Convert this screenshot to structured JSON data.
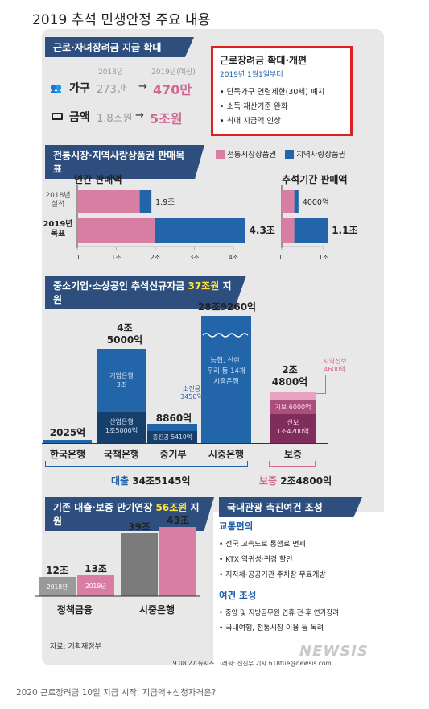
{
  "title": "2019 추석 민생안정 주요 내용",
  "s1": {
    "banner": "근로·자녀장려금 지급 확대",
    "year_prev": "2018년",
    "year_now": "2019년(예상)",
    "row1_label": "가구",
    "row1_prev": "273만",
    "row1_arrow": "→",
    "row1_now": "470만",
    "row2_label": "금액",
    "row2_prev": "1.8조원",
    "row2_arrow": "→",
    "row2_now": "5조원",
    "box_title": "근로장려금 확대·개편",
    "box_sub": "2019년 1월1일부터",
    "box_items": [
      "단독가구 연령제한(30세) 폐지",
      "소득·재산기준 완화",
      "최대 지급액 인상"
    ]
  },
  "s2": {
    "banner": "전통시장·지역사랑상품권 판매목표",
    "legend_pink": "전통시장상품권",
    "legend_blue": "지역사랑상품권",
    "left_title": "연간 판매액",
    "right_title": "추석기간 판매액",
    "row1_label_a": "2018년",
    "row1_label_b": "실적",
    "row2_label_a": "2019년",
    "row2_label_b": "목표",
    "left_val1": "1.9조",
    "left_val2": "4.3조",
    "right_val1": "4000억",
    "right_val2": "1.1조"
  },
  "s3": {
    "banner_pre": "중소기업·소상공인 추석신규자금 ",
    "banner_hl": "37조원",
    "banner_post": " 지원",
    "hanguk_val": "2025억",
    "gukchaek_top_a": "4조",
    "gukchaek_top_b": "5000억",
    "gukchaek_upper_a": "기업은행",
    "gukchaek_upper_b": "3조",
    "gukchaek_lower_a": "산업은행",
    "gukchaek_lower_b": "1조5000억",
    "jung_val": "8860억",
    "jung_annot_a": "소진공",
    "jung_annot_b": "3450억",
    "jung_inner": "중진공 5410억",
    "sijung_top": "28조9260억",
    "sijung_inner": [
      "농협, 신한,",
      "우리 등 14개",
      "시중은행"
    ],
    "bojeung_top_a": "2조",
    "bojeung_top_b": "4800억",
    "bojeung_annot_a": "지역신보",
    "bojeung_annot_b": "4600억",
    "bojeung_mid": "기보 6000억",
    "bojeung_low_a": "신보",
    "bojeung_low_b": "1조4200억",
    "label_hanguk": "한국은행",
    "label_gukchaek": "국책은행",
    "label_jung": "중기부",
    "label_sijung": "시중은행",
    "label_bojeung": "보증",
    "loan_total_a": "대출",
    "loan_total_b": "34조5145억",
    "guar_total_a": "보증",
    "guar_total_b": "2조4800억"
  },
  "s4": {
    "banner_pre": "기존 대출·보증 만기연장 ",
    "banner_hl": "56조원",
    "banner_post": " 지원",
    "v1": "12조",
    "v2": "13조",
    "v3": "39조",
    "v4": "43조",
    "year_a": "2018년",
    "year_b": "2019년",
    "cat1": "정책금융",
    "cat2": "시중은행",
    "source": "자료: 기획재정부"
  },
  "s5": {
    "banner": "국내관광 촉진여건 조성",
    "h1": "교통편의",
    "items1": [
      "전국 고속도로 통행료 면제",
      "KTX 역귀성·귀경 할인",
      "지자체·공공기관 주차장 무료개방"
    ],
    "h2": "여건 조성",
    "items2": [
      "중앙 및 지방공무원 연휴 전·후 연가장려",
      "국내여행, 전통시장 이용 등 독려"
    ]
  },
  "credit": "19.08.27 뉴시스 그래픽: 전진우 기자 618tue@newsis.com",
  "watermark": "NEWSIS",
  "caption": "2020 근로장려금 10일 지급 시작, 지급액+신청자격은?",
  "colors": {
    "navy": "#2e4f7e",
    "pink": "#d97ea3",
    "blue": "#2265a9",
    "red_box": "#e02020",
    "yellow": "#ffe23b",
    "maroon": "#8c3563"
  },
  "chart_data": [
    {
      "type": "bar",
      "title": "연간 판매액",
      "categories": [
        "2018년 실적",
        "2019년 목표"
      ],
      "series": [
        {
          "name": "전통시장상품권",
          "values": [
            1.6,
            2.0
          ]
        },
        {
          "name": "지역사랑상품권",
          "values": [
            0.3,
            2.3
          ]
        }
      ],
      "totals": [
        "1.9조",
        "4.3조"
      ],
      "xlabel": "",
      "ylabel": "",
      "xlim": [
        0,
        4
      ],
      "ticks": [
        "0",
        "1조",
        "2조",
        "3조",
        "4조"
      ]
    },
    {
      "type": "bar",
      "title": "추석기간 판매액",
      "categories": [
        "2018년 실적",
        "2019년 목표"
      ],
      "series": [
        {
          "name": "전통시장상품권",
          "values": [
            0.3,
            0.3
          ]
        },
        {
          "name": "지역사랑상품권",
          "values": [
            0.1,
            0.8
          ]
        }
      ],
      "totals": [
        "4000억",
        "1.1조"
      ],
      "xlabel": "",
      "ylabel": "",
      "xlim": [
        0,
        1
      ],
      "ticks": [
        "0",
        "1조"
      ]
    },
    {
      "type": "bar",
      "title": "기존 대출·보증 만기연장 56조원 지원",
      "categories": [
        "정책금융",
        "시중은행"
      ],
      "series": [
        {
          "name": "2018년",
          "values": [
            12,
            39
          ]
        },
        {
          "name": "2019년",
          "values": [
            13,
            43
          ]
        }
      ],
      "ylabel": "조원"
    }
  ]
}
